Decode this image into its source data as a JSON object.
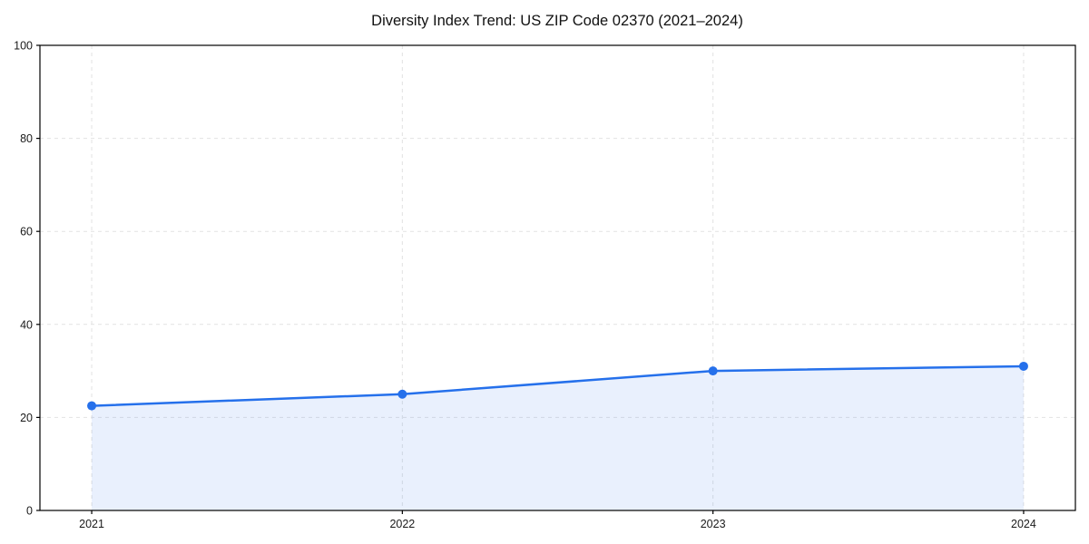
{
  "figure": {
    "background": "#ffffff"
  },
  "chart_data": {
    "type": "line",
    "title": "Diversity Index Trend: US ZIP Code 02370 (2021–2024)",
    "xlabel": "",
    "ylabel": "",
    "x": [
      2021,
      2022,
      2023,
      2024
    ],
    "series": [
      {
        "name": "Diversity Index",
        "values": [
          22.5,
          25,
          30,
          31
        ]
      }
    ],
    "xticks": [
      2021,
      2022,
      2023,
      2024
    ],
    "xtick_labels": [
      "2021",
      "2022",
      "2023",
      "2024"
    ],
    "yticks": [
      0,
      20,
      40,
      60,
      80,
      100
    ],
    "ytick_labels": [
      "0",
      "20",
      "40",
      "60",
      "80",
      "100"
    ],
    "xlim": [
      2021,
      2024
    ],
    "ylim": [
      0,
      100
    ],
    "x_margin_frac": 0.05,
    "grid": true,
    "grid_style": "dashed",
    "legend_position": "none",
    "area_fill": true,
    "marker": "circle",
    "colors": {
      "line": "#2570eb",
      "marker": "#2570eb",
      "fill": "#2570eb",
      "fill_opacity": 0.1,
      "grid": "#e2e2e2",
      "axis": "#000000",
      "tick_text": "#1a1a1a",
      "title_text": "#111111",
      "background": "#ffffff"
    }
  }
}
